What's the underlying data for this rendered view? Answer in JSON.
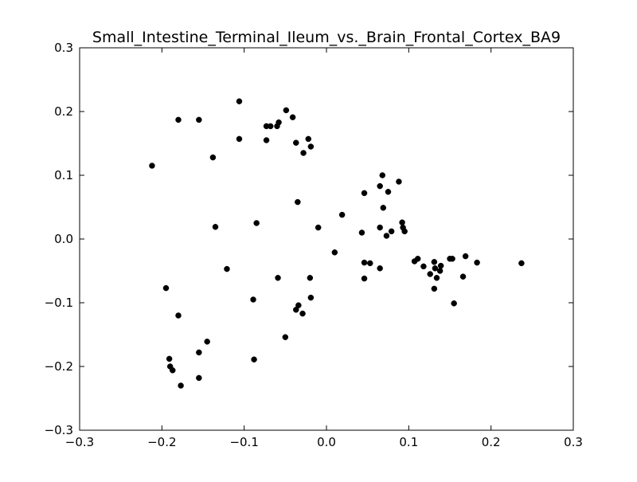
{
  "chart_data": {
    "type": "scatter",
    "title": "Small_Intestine_Terminal_Ileum_vs._Brain_Frontal_Cortex_BA9",
    "xlabel": "",
    "ylabel": "",
    "xlim": [
      -0.3,
      0.3
    ],
    "ylim": [
      -0.3,
      0.3
    ],
    "grid": false,
    "marker_color": "#000000",
    "x_ticks": [
      -0.3,
      -0.2,
      -0.1,
      0.0,
      0.1,
      0.2,
      0.3
    ],
    "y_ticks": [
      -0.3,
      -0.2,
      -0.1,
      0.0,
      0.1,
      0.2,
      0.3
    ],
    "x_tick_labels": [
      "−0.3",
      "−0.2",
      "−0.1",
      "0.0",
      "0.1",
      "0.2",
      "0.3"
    ],
    "y_tick_labels": [
      "−0.3",
      "−0.2",
      "−0.1",
      "0.0",
      "0.1",
      "0.2",
      "0.3"
    ],
    "points": [
      {
        "x": -0.212,
        "y": 0.115
      },
      {
        "x": -0.18,
        "y": 0.187
      },
      {
        "x": -0.155,
        "y": 0.187
      },
      {
        "x": -0.138,
        "y": 0.128
      },
      {
        "x": -0.106,
        "y": 0.216
      },
      {
        "x": -0.106,
        "y": 0.157
      },
      {
        "x": -0.073,
        "y": 0.177
      },
      {
        "x": -0.068,
        "y": 0.177
      },
      {
        "x": -0.06,
        "y": 0.177
      },
      {
        "x": -0.058,
        "y": 0.183
      },
      {
        "x": -0.049,
        "y": 0.202
      },
      {
        "x": -0.041,
        "y": 0.191
      },
      {
        "x": -0.073,
        "y": 0.155
      },
      {
        "x": -0.037,
        "y": 0.151
      },
      {
        "x": -0.022,
        "y": 0.157
      },
      {
        "x": -0.028,
        "y": 0.135
      },
      {
        "x": -0.019,
        "y": 0.145
      },
      {
        "x": -0.035,
        "y": 0.058
      },
      {
        "x": -0.085,
        "y": 0.025
      },
      {
        "x": -0.135,
        "y": 0.019
      },
      {
        "x": -0.01,
        "y": 0.018
      },
      {
        "x": 0.019,
        "y": 0.038
      },
      {
        "x": 0.01,
        "y": -0.021
      },
      {
        "x": -0.121,
        "y": -0.047
      },
      {
        "x": -0.059,
        "y": -0.061
      },
      {
        "x": -0.02,
        "y": -0.061
      },
      {
        "x": -0.195,
        "y": -0.077
      },
      {
        "x": -0.089,
        "y": -0.095
      },
      {
        "x": -0.019,
        "y": -0.092
      },
      {
        "x": -0.034,
        "y": -0.104
      },
      {
        "x": -0.037,
        "y": -0.111
      },
      {
        "x": -0.029,
        "y": -0.117
      },
      {
        "x": -0.18,
        "y": -0.12
      },
      {
        "x": -0.05,
        "y": -0.154
      },
      {
        "x": -0.145,
        "y": -0.161
      },
      {
        "x": -0.155,
        "y": -0.178
      },
      {
        "x": -0.191,
        "y": -0.188
      },
      {
        "x": -0.088,
        "y": -0.189
      },
      {
        "x": -0.19,
        "y": -0.2
      },
      {
        "x": -0.187,
        "y": -0.206
      },
      {
        "x": -0.155,
        "y": -0.218
      },
      {
        "x": -0.177,
        "y": -0.23
      },
      {
        "x": 0.046,
        "y": 0.072
      },
      {
        "x": 0.065,
        "y": 0.083
      },
      {
        "x": 0.068,
        "y": 0.1
      },
      {
        "x": 0.075,
        "y": 0.074
      },
      {
        "x": 0.088,
        "y": 0.09
      },
      {
        "x": 0.069,
        "y": 0.049
      },
      {
        "x": 0.043,
        "y": 0.01
      },
      {
        "x": 0.065,
        "y": 0.018
      },
      {
        "x": 0.073,
        "y": 0.005
      },
      {
        "x": 0.079,
        "y": 0.012
      },
      {
        "x": 0.092,
        "y": 0.026
      },
      {
        "x": 0.093,
        "y": 0.018
      },
      {
        "x": 0.095,
        "y": 0.012
      },
      {
        "x": 0.046,
        "y": -0.037
      },
      {
        "x": 0.053,
        "y": -0.038
      },
      {
        "x": 0.046,
        "y": -0.062
      },
      {
        "x": 0.065,
        "y": -0.046
      },
      {
        "x": 0.107,
        "y": -0.035
      },
      {
        "x": 0.111,
        "y": -0.031
      },
      {
        "x": 0.118,
        "y": -0.043
      },
      {
        "x": 0.126,
        "y": -0.055
      },
      {
        "x": 0.131,
        "y": -0.036
      },
      {
        "x": 0.132,
        "y": -0.046
      },
      {
        "x": 0.134,
        "y": -0.061
      },
      {
        "x": 0.131,
        "y": -0.078
      },
      {
        "x": 0.138,
        "y": -0.05
      },
      {
        "x": 0.139,
        "y": -0.042
      },
      {
        "x": 0.15,
        "y": -0.031
      },
      {
        "x": 0.153,
        "y": -0.031
      },
      {
        "x": 0.155,
        "y": -0.101
      },
      {
        "x": 0.166,
        "y": -0.059
      },
      {
        "x": 0.169,
        "y": -0.027
      },
      {
        "x": 0.183,
        "y": -0.037
      },
      {
        "x": 0.237,
        "y": -0.038
      }
    ]
  }
}
